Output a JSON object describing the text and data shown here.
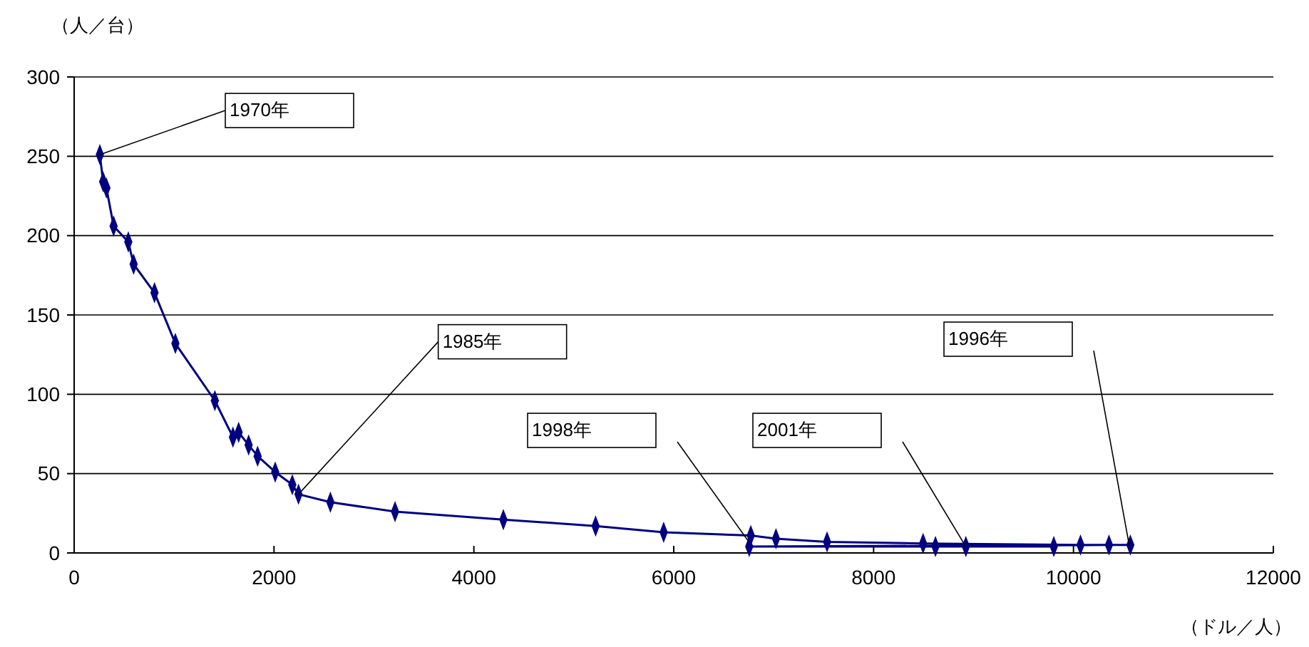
{
  "chart_data": {
    "type": "line",
    "ylabel": "（人／台）",
    "xlabel": "（ドル／人）",
    "series": [
      {
        "color": "#000080",
        "x": [
          257,
          290,
          323,
          395,
          542,
          595,
          804,
          1013,
          1408,
          1589,
          1646,
          1746,
          1836,
          2012,
          2183,
          2245,
          2564,
          3211,
          4295,
          5218,
          5899,
          6771,
          7023,
          7534,
          8495,
          10070,
          10569,
          10355,
          6755,
          8619,
          9803,
          8923
        ],
        "values": [
          251,
          234,
          230,
          206,
          196,
          182,
          164,
          132,
          96,
          73,
          76,
          68,
          61,
          51,
          43,
          37,
          32,
          26,
          21,
          17,
          13,
          11,
          9,
          7,
          6,
          5,
          5,
          5,
          4,
          4,
          4,
          4
        ]
      }
    ],
    "xlim": [
      0,
      12000
    ],
    "xticks": [
      0,
      2000,
      4000,
      6000,
      8000,
      10000,
      12000
    ],
    "ylim": [
      0,
      300
    ],
    "yticks": [
      0,
      50,
      100,
      150,
      200,
      250,
      300
    ],
    "grid": "y",
    "marker": "diamond",
    "line_style": "solid",
    "annotations": [
      {
        "text": "1970年",
        "x": 257,
        "y": 251
      },
      {
        "text": "1985年",
        "x": 2245,
        "y": 37
      },
      "1998年",
      "2001年",
      "1996年"
    ]
  }
}
